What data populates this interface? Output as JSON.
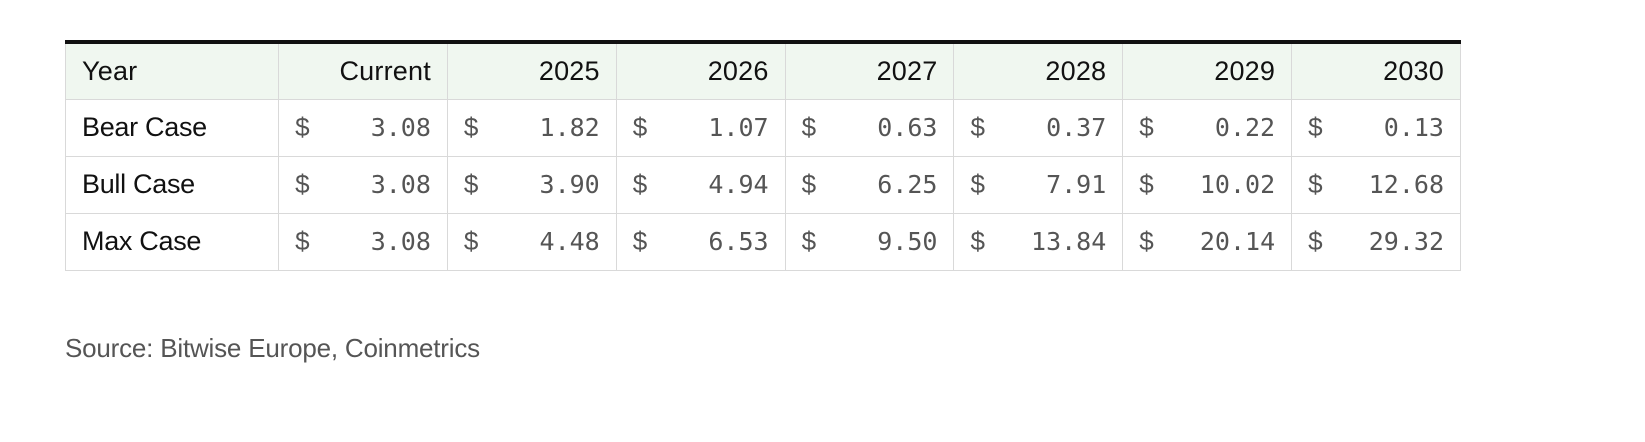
{
  "chart_data": {
    "type": "table",
    "columns": [
      "Year",
      "Current",
      "2025",
      "2026",
      "2027",
      "2028",
      "2029",
      "2030"
    ],
    "currency_symbol": "$",
    "rows": [
      {
        "label": "Bear Case",
        "values": [
          "3.08",
          "1.82",
          "1.07",
          "0.63",
          "0.37",
          "0.22",
          "0.13"
        ]
      },
      {
        "label": "Bull Case",
        "values": [
          "3.08",
          "3.90",
          "4.94",
          "6.25",
          "7.91",
          "10.02",
          "12.68"
        ]
      },
      {
        "label": "Max Case",
        "values": [
          "3.08",
          "4.48",
          "6.53",
          "9.50",
          "13.84",
          "20.14",
          "29.32"
        ]
      }
    ]
  },
  "source_note": "Source: Bitwise Europe, Coinmetrics",
  "colors": {
    "header_background": "#f0f7f0",
    "top_rule": "#111111",
    "grid": "#d9d9d9",
    "muted_text": "#555555"
  }
}
